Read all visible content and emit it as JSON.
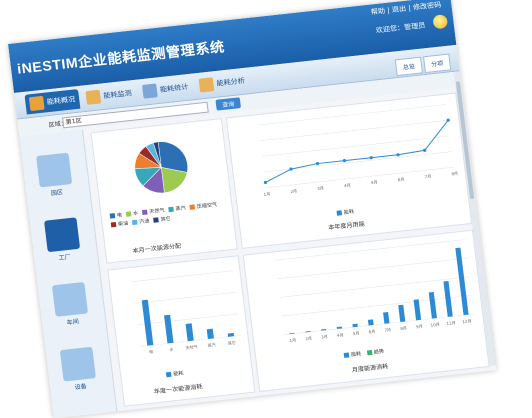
{
  "app": {
    "title": "iNESTIM企业能耗监测管理系统",
    "utility_links": "帮助  |  退出  |  修改密码",
    "user": "欢迎您：管理员"
  },
  "nav": {
    "items": [
      {
        "label": "能耗概况",
        "icon": "home-icon",
        "color": "#e7a23a"
      },
      {
        "label": "能耗监测",
        "icon": "monitor-icon",
        "color": "#e8b25a"
      },
      {
        "label": "能耗统计",
        "icon": "stats-icon",
        "color": "#7aa7d8"
      },
      {
        "label": "能耗分析",
        "icon": "analysis-icon",
        "color": "#e8b25a"
      }
    ],
    "tabs": [
      "总览",
      "分项"
    ]
  },
  "toolbar": {
    "label": "区域：",
    "select_value": "第1区",
    "button": "查询"
  },
  "sidebar": {
    "items": [
      {
        "label": "园区",
        "icon": "building-icon"
      },
      {
        "label": "工厂",
        "icon": "factory-icon"
      },
      {
        "label": "车间",
        "icon": "workshop-icon"
      },
      {
        "label": "设备",
        "icon": "device-icon"
      }
    ]
  },
  "pie_panel": {
    "title": "本月一次能源分配",
    "legend": [
      "电",
      "水",
      "天然气",
      "蒸汽",
      "压缩空气",
      "柴油",
      "汽油",
      "其它"
    ],
    "colors": [
      "#2d6fb4",
      "#9ccb4f",
      "#7f5fb8",
      "#36a8b8",
      "#ec7f2f",
      "#9b2a2a",
      "#56b8e0",
      "#2a3f7a"
    ]
  },
  "line_panel": {
    "title": "本年度月用能",
    "legend": "能耗"
  },
  "bar_left_panel": {
    "title": "年度一次能源消耗",
    "legend": "能耗"
  },
  "bar_right_panel": {
    "title": "月度能源消耗",
    "legend": [
      "能耗",
      "趋势"
    ]
  },
  "chart_data": [
    {
      "type": "pie",
      "title": "本月一次能源分配",
      "categories": [
        "电",
        "水",
        "天然气",
        "蒸汽",
        "压缩空气",
        "柴油",
        "汽油",
        "其它"
      ],
      "values": [
        30,
        20,
        14,
        12,
        10,
        6,
        5,
        3
      ]
    },
    {
      "type": "line",
      "title": "本年度月用能",
      "x": [
        "1月",
        "2月",
        "3月",
        "4月",
        "5月",
        "6月",
        "7月",
        "8月"
      ],
      "series": [
        {
          "name": "能耗",
          "values": [
            10,
            30,
            35,
            35,
            35,
            35,
            38,
            90
          ]
        }
      ],
      "ylim": [
        0,
        120
      ]
    },
    {
      "type": "bar",
      "title": "年度一次能源消耗",
      "categories": [
        "电",
        "水",
        "天然气",
        "蒸汽",
        "其它"
      ],
      "series": [
        {
          "name": "能耗",
          "values": [
            420,
            260,
            160,
            90,
            30
          ]
        }
      ],
      "ylim": [
        0,
        600
      ]
    },
    {
      "type": "bar",
      "title": "月度能源消耗",
      "categories": [
        "1月",
        "2月",
        "3月",
        "4月",
        "5月",
        "6月",
        "7月",
        "8月",
        "9月",
        "10月",
        "11月",
        "12月"
      ],
      "series": [
        {
          "name": "能耗",
          "values": [
            1,
            2,
            3,
            5,
            8,
            15,
            30,
            45,
            55,
            70,
            95,
            180
          ]
        }
      ],
      "ylim": [
        0,
        200
      ]
    }
  ]
}
